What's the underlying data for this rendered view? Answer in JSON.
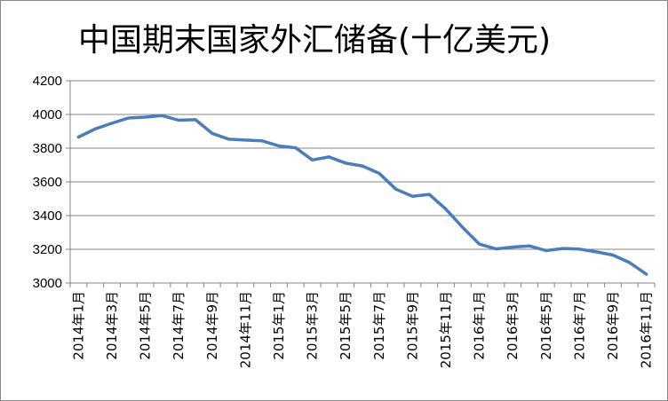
{
  "chart_data": {
    "type": "line",
    "title": "中国期末国家外汇储备(十亿美元)",
    "xlabel": "",
    "ylabel": "",
    "ylim": [
      3000,
      4200
    ],
    "yticks": [
      "3000",
      "3200",
      "3400",
      "3600",
      "3800",
      "4000",
      "4200"
    ],
    "grid": true,
    "legend": "none",
    "x_tick_labels": [
      "2014年1月",
      "2014年3月",
      "2014年5月",
      "2014年7月",
      "2014年9月",
      "2014年11月",
      "2015年1月",
      "2015年3月",
      "2015年5月",
      "2015年7月",
      "2015年9月",
      "2015年11月",
      "2016年1月",
      "2016年3月",
      "2016年5月",
      "2016年7月",
      "2016年9月",
      "2016年11月"
    ],
    "categories": [
      "2014年1月",
      "2014年2月",
      "2014年3月",
      "2014年4月",
      "2014年5月",
      "2014年6月",
      "2014年7月",
      "2014年8月",
      "2014年9月",
      "2014年10月",
      "2014年11月",
      "2014年12月",
      "2015年1月",
      "2015年2月",
      "2015年3月",
      "2015年4月",
      "2015年5月",
      "2015年6月",
      "2015年7月",
      "2015年8月",
      "2015年9月",
      "2015年10月",
      "2015年11月",
      "2015年12月",
      "2016年1月",
      "2016年2月",
      "2016年3月",
      "2016年4月",
      "2016年5月",
      "2016年6月",
      "2016年7月",
      "2016年8月",
      "2016年9月",
      "2016年10月",
      "2016年11月"
    ],
    "series": [
      {
        "color": "#4a7ebb",
        "values": [
          3866,
          3914,
          3948,
          3979,
          3984,
          3993,
          3966,
          3969,
          3888,
          3853,
          3848,
          3843,
          3813,
          3802,
          3730,
          3748,
          3711,
          3694,
          3651,
          3557,
          3514,
          3526,
          3438,
          3330,
          3231,
          3202,
          3213,
          3220,
          3192,
          3205,
          3201,
          3185,
          3166,
          3121,
          3052
        ]
      }
    ]
  }
}
